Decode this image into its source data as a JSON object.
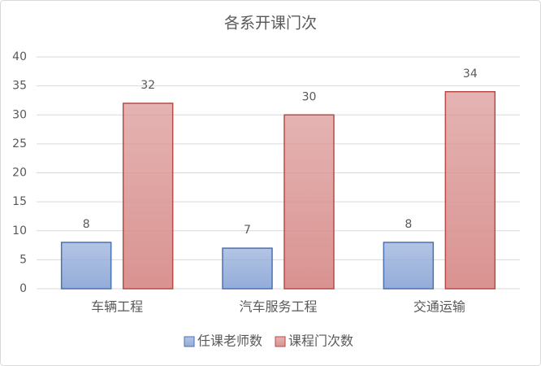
{
  "chart_data": {
    "type": "bar",
    "title": "各系开课门次",
    "categories": [
      "车辆工程",
      "汽车服务工程",
      "交通运输"
    ],
    "series": [
      {
        "name": "任课老师数",
        "color": "#93acd9",
        "values": [
          8,
          7,
          8
        ]
      },
      {
        "name": "课程门次数",
        "color": "#d99391",
        "values": [
          32,
          30,
          34
        ]
      }
    ],
    "ylim": [
      0,
      40
    ],
    "yticks": [
      0,
      5,
      10,
      15,
      20,
      25,
      30,
      35,
      40
    ],
    "grid": true,
    "legend": "bottom"
  }
}
